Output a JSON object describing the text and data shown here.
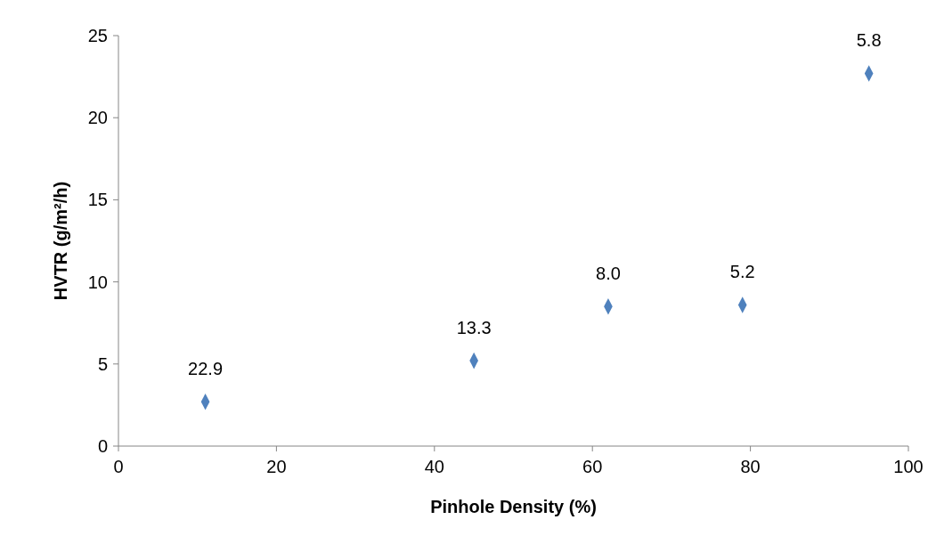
{
  "chart_data": {
    "type": "scatter",
    "xlabel": "Pinhole Density (%)",
    "ylabel": "HVTR (g/m²/h)",
    "x": [
      11,
      45,
      62,
      79,
      95
    ],
    "values": [
      2.7,
      5.2,
      8.5,
      8.6,
      22.7
    ],
    "annotations": [
      {
        "text": "22.9",
        "x": 11,
        "y": 2.7
      },
      {
        "text": "13.3",
        "x": 45,
        "y": 5.2
      },
      {
        "text": "8.0",
        "x": 62,
        "y": 8.5
      },
      {
        "text": "5.2",
        "x": 79,
        "y": 8.6
      },
      {
        "text": "5.8",
        "x": 95,
        "y": 22.7
      }
    ],
    "color": "#4f81bd",
    "marker": "diamond",
    "grid": false,
    "xlim": [
      0,
      100
    ],
    "xticks": [
      0,
      20,
      40,
      60,
      80,
      100
    ],
    "ylim": [
      0,
      25
    ],
    "yticks": [
      0,
      5,
      10,
      15,
      20,
      25
    ]
  }
}
